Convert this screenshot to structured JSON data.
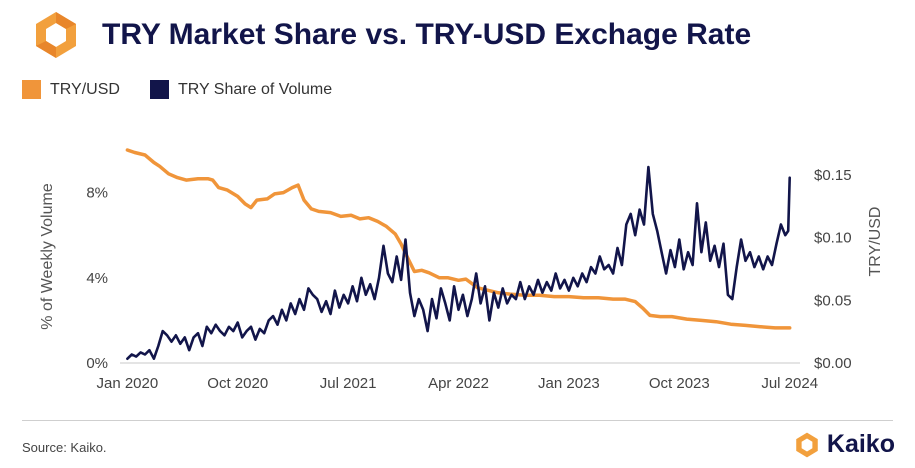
{
  "header": {
    "title": "TRY Market Share vs. TRY-USD Exchage Rate",
    "logo": "kaiko-hexagon-icon"
  },
  "legend": {
    "items": [
      {
        "label": "TRY/USD",
        "color": "#F0953A"
      },
      {
        "label": "TRY Share of Volume",
        "color": "#12154A"
      }
    ]
  },
  "footer": {
    "source": "Source: Kaiko.",
    "brand": "Kaiko"
  },
  "chart_data": {
    "type": "line",
    "ylabel_left": "% of Weekly Volume",
    "ylabel_right": "TRY/USD",
    "x_ticks": [
      "Jan 2020",
      "Oct 2020",
      "Jul 2021",
      "Apr 2022",
      "Jan 2023",
      "Oct 2023",
      "Jul 2024"
    ],
    "x_range": [
      2019.95,
      2024.57
    ],
    "y_left": {
      "ticks": [
        "0%",
        "4%",
        "8%"
      ],
      "values": [
        0,
        4,
        8
      ],
      "range": [
        0,
        10
      ]
    },
    "y_right": {
      "ticks": [
        "$0.00",
        "$0.05",
        "$0.10",
        "$0.15"
      ],
      "values": [
        0,
        0.05,
        0.1,
        0.15
      ],
      "range": [
        0,
        0.17
      ]
    },
    "series": [
      {
        "name": "TRY/USD",
        "color": "#F0953A",
        "axis": "right",
        "points": [
          [
            2020.0,
            0.17
          ],
          [
            2020.05,
            0.168
          ],
          [
            2020.12,
            0.166
          ],
          [
            2020.18,
            0.16
          ],
          [
            2020.22,
            0.157
          ],
          [
            2020.28,
            0.151
          ],
          [
            2020.34,
            0.148
          ],
          [
            2020.4,
            0.146
          ],
          [
            2020.48,
            0.147
          ],
          [
            2020.55,
            0.147
          ],
          [
            2020.58,
            0.146
          ],
          [
            2020.62,
            0.14
          ],
          [
            2020.68,
            0.138
          ],
          [
            2020.75,
            0.133
          ],
          [
            2020.8,
            0.127
          ],
          [
            2020.84,
            0.124
          ],
          [
            2020.88,
            0.13
          ],
          [
            2020.95,
            0.131
          ],
          [
            2021.0,
            0.135
          ],
          [
            2021.06,
            0.136
          ],
          [
            2021.12,
            0.14
          ],
          [
            2021.16,
            0.142
          ],
          [
            2021.2,
            0.13
          ],
          [
            2021.25,
            0.123
          ],
          [
            2021.3,
            0.121
          ],
          [
            2021.38,
            0.12
          ],
          [
            2021.45,
            0.117
          ],
          [
            2021.52,
            0.118
          ],
          [
            2021.58,
            0.115
          ],
          [
            2021.64,
            0.116
          ],
          [
            2021.7,
            0.113
          ],
          [
            2021.76,
            0.109
          ],
          [
            2021.82,
            0.103
          ],
          [
            2021.86,
            0.095
          ],
          [
            2021.9,
            0.085
          ],
          [
            2021.95,
            0.073
          ],
          [
            2022.0,
            0.074
          ],
          [
            2022.05,
            0.072
          ],
          [
            2022.12,
            0.068
          ],
          [
            2022.18,
            0.068
          ],
          [
            2022.25,
            0.066
          ],
          [
            2022.3,
            0.067
          ],
          [
            2022.38,
            0.06
          ],
          [
            2022.45,
            0.058
          ],
          [
            2022.52,
            0.056
          ],
          [
            2022.6,
            0.055
          ],
          [
            2022.7,
            0.054
          ],
          [
            2022.8,
            0.054
          ],
          [
            2022.9,
            0.053
          ],
          [
            2023.0,
            0.053
          ],
          [
            2023.1,
            0.052
          ],
          [
            2023.2,
            0.052
          ],
          [
            2023.3,
            0.051
          ],
          [
            2023.38,
            0.051
          ],
          [
            2023.45,
            0.049
          ],
          [
            2023.5,
            0.044
          ],
          [
            2023.55,
            0.038
          ],
          [
            2023.62,
            0.037
          ],
          [
            2023.7,
            0.037
          ],
          [
            2023.8,
            0.035
          ],
          [
            2023.9,
            0.034
          ],
          [
            2024.0,
            0.033
          ],
          [
            2024.1,
            0.031
          ],
          [
            2024.2,
            0.03
          ],
          [
            2024.3,
            0.029
          ],
          [
            2024.4,
            0.028
          ],
          [
            2024.5,
            0.028
          ]
        ]
      },
      {
        "name": "TRY Share of Volume",
        "color": "#12154A",
        "axis": "left",
        "points": [
          [
            2020.0,
            0.2
          ],
          [
            2020.03,
            0.4
          ],
          [
            2020.06,
            0.3
          ],
          [
            2020.09,
            0.5
          ],
          [
            2020.12,
            0.4
          ],
          [
            2020.15,
            0.6
          ],
          [
            2020.18,
            0.2
          ],
          [
            2020.21,
            0.8
          ],
          [
            2020.24,
            1.5
          ],
          [
            2020.27,
            1.3
          ],
          [
            2020.3,
            1.0
          ],
          [
            2020.33,
            1.3
          ],
          [
            2020.36,
            0.9
          ],
          [
            2020.39,
            1.2
          ],
          [
            2020.42,
            0.6
          ],
          [
            2020.45,
            1.2
          ],
          [
            2020.48,
            1.4
          ],
          [
            2020.51,
            0.8
          ],
          [
            2020.54,
            1.7
          ],
          [
            2020.57,
            1.4
          ],
          [
            2020.6,
            1.8
          ],
          [
            2020.63,
            1.5
          ],
          [
            2020.66,
            1.3
          ],
          [
            2020.69,
            1.7
          ],
          [
            2020.72,
            1.5
          ],
          [
            2020.75,
            1.9
          ],
          [
            2020.78,
            1.2
          ],
          [
            2020.81,
            1.5
          ],
          [
            2020.84,
            1.7
          ],
          [
            2020.87,
            1.1
          ],
          [
            2020.9,
            1.6
          ],
          [
            2020.93,
            1.4
          ],
          [
            2020.96,
            2.0
          ],
          [
            2020.99,
            2.2
          ],
          [
            2021.02,
            1.8
          ],
          [
            2021.05,
            2.5
          ],
          [
            2021.08,
            2.0
          ],
          [
            2021.11,
            2.8
          ],
          [
            2021.14,
            2.3
          ],
          [
            2021.17,
            3.0
          ],
          [
            2021.2,
            2.5
          ],
          [
            2021.23,
            3.5
          ],
          [
            2021.26,
            3.2
          ],
          [
            2021.29,
            3.0
          ],
          [
            2021.32,
            2.4
          ],
          [
            2021.35,
            2.9
          ],
          [
            2021.38,
            2.3
          ],
          [
            2021.41,
            3.4
          ],
          [
            2021.44,
            2.6
          ],
          [
            2021.47,
            3.2
          ],
          [
            2021.5,
            2.8
          ],
          [
            2021.53,
            3.6
          ],
          [
            2021.56,
            2.9
          ],
          [
            2021.59,
            4.0
          ],
          [
            2021.62,
            3.2
          ],
          [
            2021.65,
            3.7
          ],
          [
            2021.68,
            3.0
          ],
          [
            2021.71,
            4.0
          ],
          [
            2021.74,
            5.5
          ],
          [
            2021.77,
            4.2
          ],
          [
            2021.8,
            3.8
          ],
          [
            2021.83,
            5.0
          ],
          [
            2021.86,
            3.9
          ],
          [
            2021.89,
            5.8
          ],
          [
            2021.92,
            3.3
          ],
          [
            2021.95,
            2.2
          ],
          [
            2021.98,
            3.0
          ],
          [
            2022.01,
            2.5
          ],
          [
            2022.04,
            1.5
          ],
          [
            2022.07,
            3.0
          ],
          [
            2022.1,
            2.1
          ],
          [
            2022.13,
            3.5
          ],
          [
            2022.16,
            2.8
          ],
          [
            2022.19,
            2.0
          ],
          [
            2022.22,
            3.6
          ],
          [
            2022.25,
            2.5
          ],
          [
            2022.28,
            3.2
          ],
          [
            2022.31,
            2.2
          ],
          [
            2022.34,
            3.0
          ],
          [
            2022.37,
            4.2
          ],
          [
            2022.4,
            2.8
          ],
          [
            2022.43,
            3.6
          ],
          [
            2022.46,
            2.0
          ],
          [
            2022.49,
            3.3
          ],
          [
            2022.52,
            2.6
          ],
          [
            2022.55,
            3.5
          ],
          [
            2022.58,
            2.8
          ],
          [
            2022.61,
            3.2
          ],
          [
            2022.64,
            3.0
          ],
          [
            2022.67,
            3.8
          ],
          [
            2022.7,
            3.0
          ],
          [
            2022.73,
            3.6
          ],
          [
            2022.76,
            3.2
          ],
          [
            2022.79,
            3.9
          ],
          [
            2022.82,
            3.3
          ],
          [
            2022.85,
            3.8
          ],
          [
            2022.88,
            3.4
          ],
          [
            2022.91,
            4.2
          ],
          [
            2022.94,
            3.5
          ],
          [
            2022.97,
            3.9
          ],
          [
            2023.0,
            3.4
          ],
          [
            2023.03,
            4.0
          ],
          [
            2023.06,
            3.6
          ],
          [
            2023.09,
            4.2
          ],
          [
            2023.12,
            3.8
          ],
          [
            2023.15,
            4.5
          ],
          [
            2023.18,
            4.2
          ],
          [
            2023.21,
            5.0
          ],
          [
            2023.24,
            4.4
          ],
          [
            2023.27,
            4.6
          ],
          [
            2023.3,
            4.2
          ],
          [
            2023.33,
            5.4
          ],
          [
            2023.36,
            4.6
          ],
          [
            2023.39,
            6.5
          ],
          [
            2023.42,
            7.0
          ],
          [
            2023.45,
            6.0
          ],
          [
            2023.48,
            7.2
          ],
          [
            2023.51,
            6.5
          ],
          [
            2023.54,
            9.2
          ],
          [
            2023.57,
            7.0
          ],
          [
            2023.6,
            6.2
          ],
          [
            2023.63,
            5.2
          ],
          [
            2023.66,
            4.2
          ],
          [
            2023.69,
            5.3
          ],
          [
            2023.72,
            4.5
          ],
          [
            2023.75,
            5.8
          ],
          [
            2023.78,
            4.4
          ],
          [
            2023.81,
            5.2
          ],
          [
            2023.84,
            4.6
          ],
          [
            2023.87,
            7.5
          ],
          [
            2023.9,
            5.2
          ],
          [
            2023.93,
            6.6
          ],
          [
            2023.96,
            4.8
          ],
          [
            2023.99,
            5.5
          ],
          [
            2024.02,
            4.5
          ],
          [
            2024.05,
            5.6
          ],
          [
            2024.08,
            3.2
          ],
          [
            2024.11,
            3.0
          ],
          [
            2024.14,
            4.5
          ],
          [
            2024.17,
            5.8
          ],
          [
            2024.2,
            4.8
          ],
          [
            2024.23,
            5.2
          ],
          [
            2024.26,
            4.5
          ],
          [
            2024.29,
            5.0
          ],
          [
            2024.32,
            4.4
          ],
          [
            2024.35,
            5.0
          ],
          [
            2024.38,
            4.6
          ],
          [
            2024.41,
            5.6
          ],
          [
            2024.44,
            6.5
          ],
          [
            2024.47,
            6.0
          ],
          [
            2024.49,
            6.2
          ],
          [
            2024.5,
            8.7
          ]
        ]
      }
    ]
  }
}
